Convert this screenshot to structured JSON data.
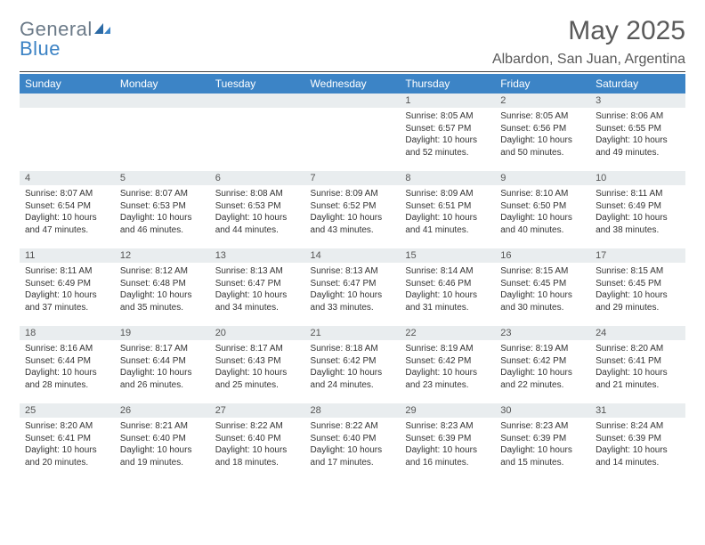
{
  "brand": {
    "part1": "General",
    "part2": "Blue"
  },
  "title": {
    "month": "May 2025",
    "location": "Albardon, San Juan, Argentina"
  },
  "colors": {
    "header_bg": "#3c84c6",
    "header_fg": "#ffffff",
    "daynum_bg": "#e9edef",
    "text": "#333333",
    "brand_gray": "#6b7a88",
    "brand_blue": "#3b82c4"
  },
  "week_labels": [
    "Sunday",
    "Monday",
    "Tuesday",
    "Wednesday",
    "Thursday",
    "Friday",
    "Saturday"
  ],
  "weeks": [
    [
      {
        "n": "",
        "sr": "",
        "ss": "",
        "dl": ""
      },
      {
        "n": "",
        "sr": "",
        "ss": "",
        "dl": ""
      },
      {
        "n": "",
        "sr": "",
        "ss": "",
        "dl": ""
      },
      {
        "n": "",
        "sr": "",
        "ss": "",
        "dl": ""
      },
      {
        "n": "1",
        "sr": "Sunrise: 8:05 AM",
        "ss": "Sunset: 6:57 PM",
        "dl": "Daylight: 10 hours and 52 minutes."
      },
      {
        "n": "2",
        "sr": "Sunrise: 8:05 AM",
        "ss": "Sunset: 6:56 PM",
        "dl": "Daylight: 10 hours and 50 minutes."
      },
      {
        "n": "3",
        "sr": "Sunrise: 8:06 AM",
        "ss": "Sunset: 6:55 PM",
        "dl": "Daylight: 10 hours and 49 minutes."
      }
    ],
    [
      {
        "n": "4",
        "sr": "Sunrise: 8:07 AM",
        "ss": "Sunset: 6:54 PM",
        "dl": "Daylight: 10 hours and 47 minutes."
      },
      {
        "n": "5",
        "sr": "Sunrise: 8:07 AM",
        "ss": "Sunset: 6:53 PM",
        "dl": "Daylight: 10 hours and 46 minutes."
      },
      {
        "n": "6",
        "sr": "Sunrise: 8:08 AM",
        "ss": "Sunset: 6:53 PM",
        "dl": "Daylight: 10 hours and 44 minutes."
      },
      {
        "n": "7",
        "sr": "Sunrise: 8:09 AM",
        "ss": "Sunset: 6:52 PM",
        "dl": "Daylight: 10 hours and 43 minutes."
      },
      {
        "n": "8",
        "sr": "Sunrise: 8:09 AM",
        "ss": "Sunset: 6:51 PM",
        "dl": "Daylight: 10 hours and 41 minutes."
      },
      {
        "n": "9",
        "sr": "Sunrise: 8:10 AM",
        "ss": "Sunset: 6:50 PM",
        "dl": "Daylight: 10 hours and 40 minutes."
      },
      {
        "n": "10",
        "sr": "Sunrise: 8:11 AM",
        "ss": "Sunset: 6:49 PM",
        "dl": "Daylight: 10 hours and 38 minutes."
      }
    ],
    [
      {
        "n": "11",
        "sr": "Sunrise: 8:11 AM",
        "ss": "Sunset: 6:49 PM",
        "dl": "Daylight: 10 hours and 37 minutes."
      },
      {
        "n": "12",
        "sr": "Sunrise: 8:12 AM",
        "ss": "Sunset: 6:48 PM",
        "dl": "Daylight: 10 hours and 35 minutes."
      },
      {
        "n": "13",
        "sr": "Sunrise: 8:13 AM",
        "ss": "Sunset: 6:47 PM",
        "dl": "Daylight: 10 hours and 34 minutes."
      },
      {
        "n": "14",
        "sr": "Sunrise: 8:13 AM",
        "ss": "Sunset: 6:47 PM",
        "dl": "Daylight: 10 hours and 33 minutes."
      },
      {
        "n": "15",
        "sr": "Sunrise: 8:14 AM",
        "ss": "Sunset: 6:46 PM",
        "dl": "Daylight: 10 hours and 31 minutes."
      },
      {
        "n": "16",
        "sr": "Sunrise: 8:15 AM",
        "ss": "Sunset: 6:45 PM",
        "dl": "Daylight: 10 hours and 30 minutes."
      },
      {
        "n": "17",
        "sr": "Sunrise: 8:15 AM",
        "ss": "Sunset: 6:45 PM",
        "dl": "Daylight: 10 hours and 29 minutes."
      }
    ],
    [
      {
        "n": "18",
        "sr": "Sunrise: 8:16 AM",
        "ss": "Sunset: 6:44 PM",
        "dl": "Daylight: 10 hours and 28 minutes."
      },
      {
        "n": "19",
        "sr": "Sunrise: 8:17 AM",
        "ss": "Sunset: 6:44 PM",
        "dl": "Daylight: 10 hours and 26 minutes."
      },
      {
        "n": "20",
        "sr": "Sunrise: 8:17 AM",
        "ss": "Sunset: 6:43 PM",
        "dl": "Daylight: 10 hours and 25 minutes."
      },
      {
        "n": "21",
        "sr": "Sunrise: 8:18 AM",
        "ss": "Sunset: 6:42 PM",
        "dl": "Daylight: 10 hours and 24 minutes."
      },
      {
        "n": "22",
        "sr": "Sunrise: 8:19 AM",
        "ss": "Sunset: 6:42 PM",
        "dl": "Daylight: 10 hours and 23 minutes."
      },
      {
        "n": "23",
        "sr": "Sunrise: 8:19 AM",
        "ss": "Sunset: 6:42 PM",
        "dl": "Daylight: 10 hours and 22 minutes."
      },
      {
        "n": "24",
        "sr": "Sunrise: 8:20 AM",
        "ss": "Sunset: 6:41 PM",
        "dl": "Daylight: 10 hours and 21 minutes."
      }
    ],
    [
      {
        "n": "25",
        "sr": "Sunrise: 8:20 AM",
        "ss": "Sunset: 6:41 PM",
        "dl": "Daylight: 10 hours and 20 minutes."
      },
      {
        "n": "26",
        "sr": "Sunrise: 8:21 AM",
        "ss": "Sunset: 6:40 PM",
        "dl": "Daylight: 10 hours and 19 minutes."
      },
      {
        "n": "27",
        "sr": "Sunrise: 8:22 AM",
        "ss": "Sunset: 6:40 PM",
        "dl": "Daylight: 10 hours and 18 minutes."
      },
      {
        "n": "28",
        "sr": "Sunrise: 8:22 AM",
        "ss": "Sunset: 6:40 PM",
        "dl": "Daylight: 10 hours and 17 minutes."
      },
      {
        "n": "29",
        "sr": "Sunrise: 8:23 AM",
        "ss": "Sunset: 6:39 PM",
        "dl": "Daylight: 10 hours and 16 minutes."
      },
      {
        "n": "30",
        "sr": "Sunrise: 8:23 AM",
        "ss": "Sunset: 6:39 PM",
        "dl": "Daylight: 10 hours and 15 minutes."
      },
      {
        "n": "31",
        "sr": "Sunrise: 8:24 AM",
        "ss": "Sunset: 6:39 PM",
        "dl": "Daylight: 10 hours and 14 minutes."
      }
    ]
  ]
}
